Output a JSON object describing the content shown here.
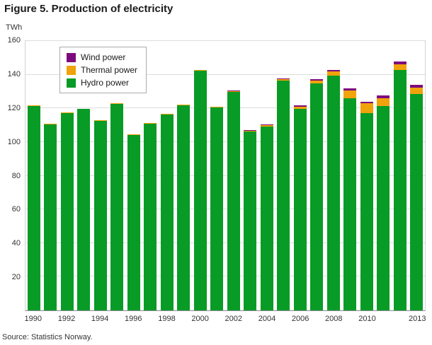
{
  "title": "Figure 5. Production of electricity",
  "y_axis_unit": "TWh",
  "source": "Source: Statistics Norway.",
  "chart_data": {
    "type": "bar",
    "stacked": true,
    "title": "Figure 5. Production of electricity",
    "ylabel": "TWh",
    "ylim": [
      0,
      160
    ],
    "yticks": [
      20,
      40,
      60,
      80,
      100,
      120,
      140,
      160
    ],
    "grid": true,
    "legend_position": "top-left-inside",
    "categories": [
      1990,
      1991,
      1992,
      1993,
      1994,
      1995,
      1996,
      1997,
      1998,
      1999,
      2000,
      2001,
      2002,
      2003,
      2004,
      2005,
      2006,
      2007,
      2008,
      2009,
      2010,
      2011,
      2012,
      2013
    ],
    "x_tick_labels": [
      "1990",
      "1992",
      "1994",
      "1996",
      "1998",
      "2000",
      "2002",
      "2004",
      "2006",
      "2008",
      "2010",
      "2013"
    ],
    "series": [
      {
        "name": "Hydro power",
        "color": "#089b26",
        "values": [
          121.4,
          110.5,
          117.1,
          119.5,
          112.6,
          122.5,
          104.2,
          110.9,
          116.3,
          122.0,
          142.3,
          120.6,
          129.8,
          106.1,
          109.3,
          136.5,
          119.8,
          134.7,
          139.5,
          126.1,
          117.3,
          121.4,
          142.9,
          128.7
        ]
      },
      {
        "name": "Thermal power",
        "color": "#f0a30a",
        "values": [
          0.3,
          0.3,
          0.3,
          0.3,
          0.4,
          0.4,
          0.4,
          0.4,
          0.4,
          0.4,
          0.4,
          0.5,
          0.6,
          0.7,
          0.9,
          0.9,
          1.2,
          1.8,
          2.3,
          4.7,
          5.6,
          4.8,
          3.4,
          3.5
        ]
      },
      {
        "name": "Wind power",
        "color": "#7d0a7d",
        "values": [
          0.0,
          0.0,
          0.0,
          0.0,
          0.0,
          0.0,
          0.0,
          0.0,
          0.0,
          0.0,
          0.0,
          0.0,
          0.1,
          0.2,
          0.3,
          0.5,
          0.7,
          0.9,
          0.9,
          1.0,
          0.9,
          1.3,
          1.5,
          1.9
        ]
      }
    ],
    "legend_order": [
      "Wind power",
      "Thermal power",
      "Hydro power"
    ]
  }
}
